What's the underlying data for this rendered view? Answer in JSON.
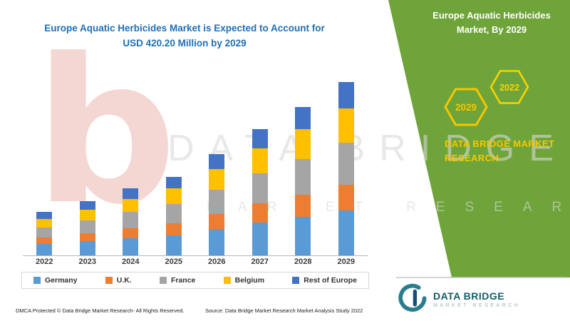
{
  "title": {
    "line1": "Europe Aquatic Herbicides Market is Expected to Account for",
    "line2": "USD 420.20 Million by 2029"
  },
  "side_panel": {
    "heading_line1": "Europe Aquatic Herbicides",
    "heading_line2": "Market, By 2029",
    "hexagon_left": "2029",
    "hexagon_right": "2022",
    "brand": "DATA BRIDGE MARKET RESEARCH",
    "green": "#6fa43a",
    "gold": "#f7c600"
  },
  "watermark": {
    "line1": "DATA BRIDGE",
    "line2": "MARKET RESEARCH",
    "logo_glyph": "b"
  },
  "footer": {
    "dmca": "DMCA Protected © Data Bridge Market Research- All Rights Reserved.",
    "source": "Source: Data Bridge Market Research Market Analysis Study 2022"
  },
  "logo": {
    "name": "DATA BRIDGE",
    "sub": "MARKET RESEARCH"
  },
  "chart_data": {
    "type": "bar",
    "stacked": true,
    "title": "Europe Aquatic Herbicides Market is Expected to Account for USD 420.20 Million by 2029",
    "unit_hint": "USD Million",
    "categories": [
      "2022",
      "2023",
      "2024",
      "2025",
      "2026",
      "2027",
      "2028",
      "2029"
    ],
    "series": [
      {
        "name": "Germany",
        "color": "#5b9bd5",
        "values": [
          27,
          34,
          42,
          49,
          64,
          80,
          94,
          109
        ]
      },
      {
        "name": "U.K.",
        "color": "#ed7d31",
        "values": [
          16,
          20,
          24,
          29,
          37,
          46,
          54,
          63
        ]
      },
      {
        "name": "France",
        "color": "#a5a5a5",
        "values": [
          25,
          31,
          39,
          46,
          59,
          73,
          86,
          101
        ]
      },
      {
        "name": "Belgium",
        "color": "#ffc000",
        "values": [
          21,
          26,
          32,
          38,
          49,
          61,
          72,
          84
        ]
      },
      {
        "name": "Rest of Europe",
        "color": "#4472c4",
        "values": [
          16,
          20,
          25,
          28,
          37,
          46,
          54,
          63.2
        ]
      }
    ],
    "totals": [
      105,
      131,
      162,
      190,
      246,
      306,
      360,
      420.2
    ],
    "ylim": [
      0,
      450
    ],
    "grid": false,
    "legend_position": "bottom"
  }
}
